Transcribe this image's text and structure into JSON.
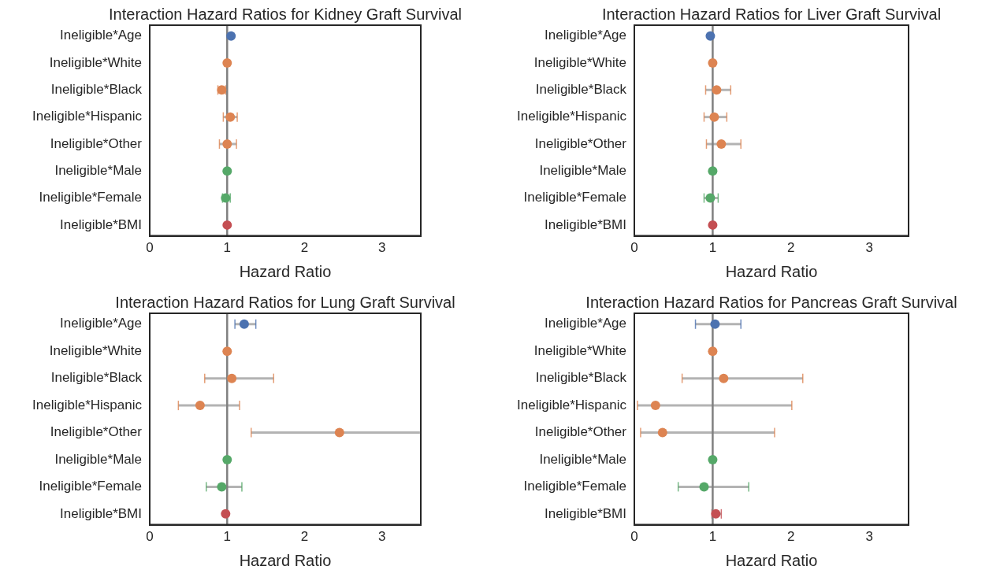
{
  "chart_data": [
    {
      "type": "scatter",
      "title": "Interaction Hazard Ratios for Kidney Graft Survival",
      "xlabel": "Hazard Ratio",
      "orientation": "horizontal",
      "categories": [
        "Ineligible*Age",
        "Ineligible*White",
        "Ineligible*Black",
        "Ineligible*Hispanic",
        "Ineligible*Other",
        "Ineligible*Male",
        "Ineligible*Female",
        "Ineligible*BMI"
      ],
      "xlim": [
        0,
        3.5
      ],
      "xticks": [
        0,
        1,
        2,
        3
      ],
      "grid": false,
      "legend": false,
      "marker": "circle",
      "ref_lines": [
        {
          "axis": "x",
          "value": 1,
          "color": "#808080"
        }
      ],
      "series": [
        {
          "color": "#4c72b0",
          "values": [
            1.05,
            null,
            null,
            null,
            null,
            null,
            null,
            null
          ],
          "errors": [
            null,
            null,
            null,
            null,
            null,
            null,
            null,
            null
          ]
        },
        {
          "color": "#dd8452",
          "values": [
            null,
            1.0,
            0.93,
            1.04,
            1.0,
            null,
            null,
            null
          ],
          "errors": [
            null,
            null,
            [
              0.88,
              0.98
            ],
            [
              0.95,
              1.13
            ],
            [
              0.9,
              1.12
            ],
            null,
            null,
            null
          ]
        },
        {
          "color": "#55a868",
          "values": [
            null,
            null,
            null,
            null,
            null,
            1.0,
            0.98,
            null
          ],
          "errors": [
            null,
            null,
            null,
            null,
            null,
            null,
            [
              0.94,
              1.04
            ],
            null
          ]
        },
        {
          "color": "#c44e52",
          "values": [
            null,
            null,
            null,
            null,
            null,
            null,
            null,
            1.0
          ],
          "errors": [
            null,
            null,
            null,
            null,
            null,
            null,
            null,
            null
          ]
        }
      ]
    },
    {
      "type": "scatter",
      "title": "Interaction Hazard Ratios for Liver Graft Survival",
      "xlabel": "Hazard Ratio",
      "orientation": "horizontal",
      "categories": [
        "Ineligible*Age",
        "Ineligible*White",
        "Ineligible*Black",
        "Ineligible*Hispanic",
        "Ineligible*Other",
        "Ineligible*Male",
        "Ineligible*Female",
        "Ineligible*BMI"
      ],
      "xlim": [
        0,
        3.5
      ],
      "xticks": [
        0,
        1,
        2,
        3
      ],
      "grid": false,
      "legend": false,
      "marker": "circle",
      "ref_lines": [
        {
          "axis": "x",
          "value": 1,
          "color": "#808080"
        }
      ],
      "series": [
        {
          "color": "#4c72b0",
          "values": [
            0.97,
            null,
            null,
            null,
            null,
            null,
            null,
            null
          ],
          "errors": [
            null,
            null,
            null,
            null,
            null,
            null,
            null,
            null
          ]
        },
        {
          "color": "#dd8452",
          "values": [
            null,
            1.0,
            1.05,
            1.02,
            1.11,
            null,
            null,
            null
          ],
          "errors": [
            null,
            null,
            [
              0.91,
              1.23
            ],
            [
              0.89,
              1.18
            ],
            [
              0.92,
              1.36
            ],
            null,
            null,
            null
          ]
        },
        {
          "color": "#55a868",
          "values": [
            null,
            null,
            null,
            null,
            null,
            1.0,
            0.97,
            null
          ],
          "errors": [
            null,
            null,
            null,
            null,
            null,
            null,
            [
              0.89,
              1.07
            ],
            null
          ]
        },
        {
          "color": "#c44e52",
          "values": [
            null,
            null,
            null,
            null,
            null,
            null,
            null,
            1.0
          ],
          "errors": [
            null,
            null,
            null,
            null,
            null,
            null,
            null,
            null
          ]
        }
      ]
    },
    {
      "type": "scatter",
      "title": "Interaction Hazard Ratios for Lung Graft Survival",
      "xlabel": "Hazard Ratio",
      "orientation": "horizontal",
      "categories": [
        "Ineligible*Age",
        "Ineligible*White",
        "Ineligible*Black",
        "Ineligible*Hispanic",
        "Ineligible*Other",
        "Ineligible*Male",
        "Ineligible*Female",
        "Ineligible*BMI"
      ],
      "xlim": [
        0,
        3.5
      ],
      "xticks": [
        0,
        1,
        2,
        3
      ],
      "grid": false,
      "legend": false,
      "marker": "circle",
      "ref_lines": [
        {
          "axis": "x",
          "value": 1,
          "color": "#808080"
        }
      ],
      "series": [
        {
          "color": "#4c72b0",
          "values": [
            1.22,
            null,
            null,
            null,
            null,
            null,
            null,
            null
          ],
          "errors": [
            [
              1.1,
              1.37
            ],
            null,
            null,
            null,
            null,
            null,
            null,
            null
          ]
        },
        {
          "color": "#dd8452",
          "values": [
            null,
            1.0,
            1.06,
            0.65,
            2.45,
            null,
            null,
            null
          ],
          "errors": [
            null,
            null,
            [
              0.71,
              1.6
            ],
            [
              0.37,
              1.16
            ],
            [
              1.31,
              3.5
            ],
            null,
            null,
            null
          ]
        },
        {
          "color": "#55a868",
          "values": [
            null,
            null,
            null,
            null,
            null,
            1.0,
            0.93,
            null
          ],
          "errors": [
            null,
            null,
            null,
            null,
            null,
            null,
            [
              0.73,
              1.19
            ],
            null
          ]
        },
        {
          "color": "#c44e52",
          "values": [
            null,
            null,
            null,
            null,
            null,
            null,
            null,
            0.98
          ],
          "errors": [
            null,
            null,
            null,
            null,
            null,
            null,
            null,
            null
          ]
        }
      ]
    },
    {
      "type": "scatter",
      "title": "Interaction Hazard Ratios for Pancreas Graft Survival",
      "xlabel": "Hazard Ratio",
      "orientation": "horizontal",
      "categories": [
        "Ineligible*Age",
        "Ineligible*White",
        "Ineligible*Black",
        "Ineligible*Hispanic",
        "Ineligible*Other",
        "Ineligible*Male",
        "Ineligible*Female",
        "Ineligible*BMI"
      ],
      "xlim": [
        0,
        3.5
      ],
      "xticks": [
        0,
        1,
        2,
        3
      ],
      "grid": false,
      "legend": false,
      "marker": "circle",
      "ref_lines": [
        {
          "axis": "x",
          "value": 1,
          "color": "#808080"
        }
      ],
      "series": [
        {
          "color": "#4c72b0",
          "values": [
            1.03,
            null,
            null,
            null,
            null,
            null,
            null,
            null
          ],
          "errors": [
            [
              0.78,
              1.36
            ],
            null,
            null,
            null,
            null,
            null,
            null,
            null
          ]
        },
        {
          "color": "#dd8452",
          "values": [
            null,
            1.0,
            1.14,
            0.27,
            0.36,
            null,
            null,
            null
          ],
          "errors": [
            null,
            null,
            [
              0.61,
              2.15
            ],
            [
              0.04,
              2.01
            ],
            [
              0.08,
              1.79
            ],
            null,
            null,
            null
          ]
        },
        {
          "color": "#55a868",
          "values": [
            null,
            null,
            null,
            null,
            null,
            1.0,
            0.89,
            null
          ],
          "errors": [
            null,
            null,
            null,
            null,
            null,
            null,
            [
              0.56,
              1.46
            ],
            null
          ]
        },
        {
          "color": "#c44e52",
          "values": [
            null,
            null,
            null,
            null,
            null,
            null,
            null,
            1.04
          ],
          "errors": [
            null,
            null,
            null,
            null,
            null,
            null,
            null,
            [
              0.99,
              1.11
            ]
          ]
        }
      ]
    }
  ]
}
